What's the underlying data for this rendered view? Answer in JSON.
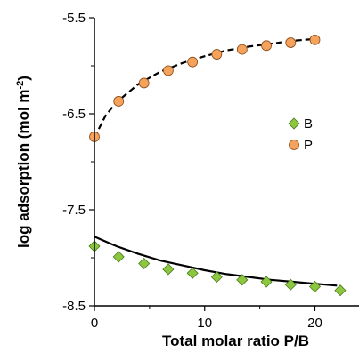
{
  "chart_data": {
    "type": "scatter",
    "title": "",
    "xlabel": "Total molar ratio P/B",
    "ylabel_main": "log adsorption (mol m",
    "ylabel_sup": "-2",
    "ylabel_close": ")",
    "xlim": [
      0,
      24
    ],
    "ylim": [
      -8.5,
      -5.5
    ],
    "xticks": [
      0,
      10,
      20
    ],
    "yticks": [
      -8.5,
      -7.5,
      -6.5,
      -5.5
    ],
    "xtick_labels": [
      "0",
      "10",
      "20"
    ],
    "ytick_labels": [
      "-8.5",
      "-7.5",
      "-6.5",
      "-5.5"
    ],
    "legend_position": "center-right",
    "grid": false,
    "series": [
      {
        "name": "B",
        "marker": "diamond",
        "color": "#8dc63f",
        "edge": "#4a7a1e",
        "x": [
          0,
          2.2,
          4.5,
          6.7,
          8.9,
          11.1,
          13.4,
          15.6,
          17.8,
          20.0,
          22.3
        ],
        "y": [
          -7.88,
          -7.99,
          -8.06,
          -8.12,
          -8.16,
          -8.2,
          -8.23,
          -8.25,
          -8.28,
          -8.3,
          -8.34
        ]
      },
      {
        "name": "P",
        "marker": "circle",
        "color": "#f5a25d",
        "edge": "#8a4a16",
        "x": [
          0,
          2.2,
          4.5,
          6.7,
          8.9,
          11.1,
          13.4,
          15.6,
          17.8,
          20.0
        ],
        "y": [
          -6.74,
          -6.37,
          -6.18,
          -6.05,
          -5.96,
          -5.88,
          -5.83,
          -5.79,
          -5.76,
          -5.73
        ]
      }
    ],
    "fit_lines": [
      {
        "style": "solid",
        "x": [
          0,
          2,
          4,
          6,
          8,
          10,
          12,
          14,
          16,
          18,
          20,
          22
        ],
        "y": [
          -7.78,
          -7.88,
          -7.96,
          -8.03,
          -8.08,
          -8.13,
          -8.17,
          -8.2,
          -8.23,
          -8.25,
          -8.27,
          -8.29
        ]
      },
      {
        "style": "dashed",
        "x": [
          0,
          1,
          2,
          4,
          6,
          8,
          10,
          12,
          14,
          16,
          18,
          20
        ],
        "y": [
          -6.75,
          -6.52,
          -6.38,
          -6.19,
          -6.06,
          -5.97,
          -5.9,
          -5.84,
          -5.8,
          -5.77,
          -5.74,
          -5.72
        ]
      }
    ]
  }
}
